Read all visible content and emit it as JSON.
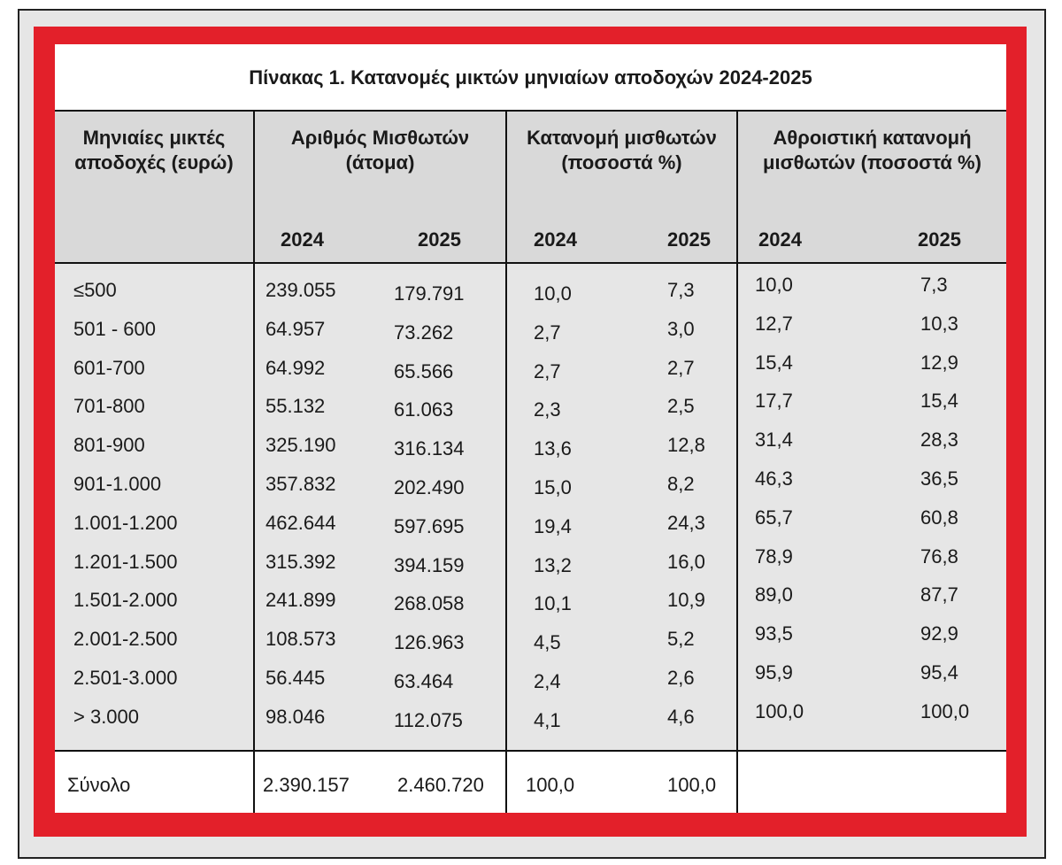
{
  "title": "Πίνακας 1. Κατανομές μικτών μηνιαίων αποδοχών 2024-2025",
  "header": {
    "columns": [
      "Μηνιαίες μικτές αποδοχές (ευρώ)",
      "Αριθμός Μισθωτών (άτομα)",
      "Κατανομή μισθωτών (ποσοστά %)",
      "Αθροιστική κατανομή μισθωτών (ποσοστά %)"
    ],
    "years": [
      "2024",
      "2025",
      "2024",
      "2025",
      "2024",
      "2025"
    ]
  },
  "rows": [
    [
      "≤500",
      "239.055",
      "179.791",
      "10,0",
      "7,3",
      "10,0",
      "7,3"
    ],
    [
      "501 - 600",
      "64.957",
      "73.262",
      "2,7",
      "3,0",
      "12,7",
      "10,3"
    ],
    [
      "601-700",
      "64.992",
      "65.566",
      "2,7",
      "2,7",
      "15,4",
      "12,9"
    ],
    [
      "701-800",
      "55.132",
      "61.063",
      "2,3",
      "2,5",
      "17,7",
      "15,4"
    ],
    [
      "801-900",
      "325.190",
      "316.134",
      "13,6",
      "12,8",
      "31,4",
      "28,3"
    ],
    [
      "901-1.000",
      "357.832",
      "202.490",
      "15,0",
      "8,2",
      "46,3",
      "36,5"
    ],
    [
      "1.001-1.200",
      "462.644",
      "597.695",
      "19,4",
      "24,3",
      "65,7",
      "60,8"
    ],
    [
      "1.201-1.500",
      "315.392",
      "394.159",
      "13,2",
      "16,0",
      "78,9",
      "76,8"
    ],
    [
      "1.501-2.000",
      "241.899",
      "268.058",
      "10,1",
      "10,9",
      "89,0",
      "87,7"
    ],
    [
      "2.001-2.500",
      "108.573",
      "126.963",
      "4,5",
      "5,2",
      "93,5",
      "92,9"
    ],
    [
      "2.501-3.000",
      "56.445",
      "63.464",
      "2,4",
      "2,6",
      "95,9",
      "95,4"
    ],
    [
      "> 3.000",
      "98.046",
      "112.075",
      "4,1",
      "4,6",
      "100,0",
      "100,0"
    ]
  ],
  "total": [
    "Σύνολο",
    "2.390.157",
    "2.460.720",
    "100,0",
    "100,0"
  ]
}
